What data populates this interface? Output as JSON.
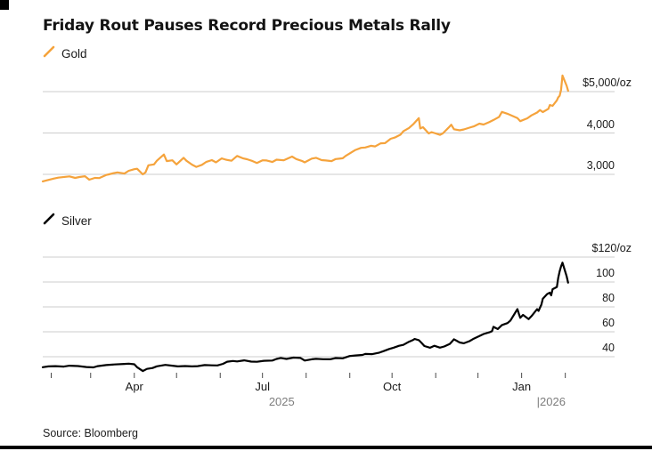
{
  "header": {
    "title": "Friday Rout Pauses Record Precious Metals Rally"
  },
  "source": "Source: Bloomberg",
  "colors": {
    "gold_line": "#F5A33C",
    "silver_line": "#000000",
    "grid": "#CDCDCD",
    "tick": "#4a4a4a",
    "year_text": "#7d7d7d",
    "title_text": "#131313"
  },
  "chart_data": [
    {
      "type": "line",
      "legend": "Gold",
      "color": "#F5A33C",
      "ylabel_unit": "$/oz",
      "ylim": [
        2750,
        5500
      ],
      "y_ticks": [
        {
          "value": 5000,
          "label": "$5,000/oz"
        },
        {
          "value": 4000,
          "label": "4,000"
        },
        {
          "value": 3000,
          "label": "3,000"
        }
      ],
      "series": [
        [
          "2025-01-26",
          2830
        ],
        [
          "2025-01-29",
          2855
        ],
        [
          "2025-02-03",
          2900
        ],
        [
          "2025-02-06",
          2920
        ],
        [
          "2025-02-11",
          2940
        ],
        [
          "2025-02-14",
          2950
        ],
        [
          "2025-02-18",
          2915
        ],
        [
          "2025-02-21",
          2935
        ],
        [
          "2025-02-25",
          2955
        ],
        [
          "2025-02-28",
          2870
        ],
        [
          "2025-03-04",
          2915
        ],
        [
          "2025-03-07",
          2910
        ],
        [
          "2025-03-12",
          2985
        ],
        [
          "2025-03-14",
          3000
        ],
        [
          "2025-03-18",
          3035
        ],
        [
          "2025-03-20",
          3048
        ],
        [
          "2025-03-25",
          3020
        ],
        [
          "2025-03-28",
          3085
        ],
        [
          "2025-04-01",
          3125
        ],
        [
          "2025-04-03",
          3135
        ],
        [
          "2025-04-07",
          3000
        ],
        [
          "2025-04-09",
          3050
        ],
        [
          "2025-04-11",
          3220
        ],
        [
          "2025-04-15",
          3240
        ],
        [
          "2025-04-17",
          3330
        ],
        [
          "2025-04-22",
          3480
        ],
        [
          "2025-04-24",
          3320
        ],
        [
          "2025-04-28",
          3340
        ],
        [
          "2025-05-01",
          3240
        ],
        [
          "2025-05-06",
          3400
        ],
        [
          "2025-05-08",
          3330
        ],
        [
          "2025-05-12",
          3235
        ],
        [
          "2025-05-15",
          3180
        ],
        [
          "2025-05-19",
          3230
        ],
        [
          "2025-05-22",
          3300
        ],
        [
          "2025-05-26",
          3345
        ],
        [
          "2025-05-29",
          3290
        ],
        [
          "2025-06-02",
          3385
        ],
        [
          "2025-06-05",
          3355
        ],
        [
          "2025-06-09",
          3330
        ],
        [
          "2025-06-13",
          3445
        ],
        [
          "2025-06-17",
          3390
        ],
        [
          "2025-06-20",
          3365
        ],
        [
          "2025-06-24",
          3320
        ],
        [
          "2025-06-27",
          3275
        ],
        [
          "2025-07-01",
          3340
        ],
        [
          "2025-07-04",
          3335
        ],
        [
          "2025-07-08",
          3300
        ],
        [
          "2025-07-11",
          3355
        ],
        [
          "2025-07-16",
          3340
        ],
        [
          "2025-07-22",
          3430
        ],
        [
          "2025-07-25",
          3370
        ],
        [
          "2025-07-29",
          3325
        ],
        [
          "2025-07-31",
          3290
        ],
        [
          "2025-08-05",
          3380
        ],
        [
          "2025-08-08",
          3400
        ],
        [
          "2025-08-12",
          3345
        ],
        [
          "2025-08-15",
          3335
        ],
        [
          "2025-08-19",
          3320
        ],
        [
          "2025-08-22",
          3370
        ],
        [
          "2025-08-27",
          3390
        ],
        [
          "2025-08-29",
          3445
        ],
        [
          "2025-09-02",
          3530
        ],
        [
          "2025-09-05",
          3590
        ],
        [
          "2025-09-09",
          3640
        ],
        [
          "2025-09-12",
          3650
        ],
        [
          "2025-09-16",
          3690
        ],
        [
          "2025-09-19",
          3675
        ],
        [
          "2025-09-23",
          3750
        ],
        [
          "2025-09-26",
          3755
        ],
        [
          "2025-09-30",
          3860
        ],
        [
          "2025-10-03",
          3890
        ],
        [
          "2025-10-07",
          3960
        ],
        [
          "2025-10-09",
          4040
        ],
        [
          "2025-10-13",
          4120
        ],
        [
          "2025-10-16",
          4210
        ],
        [
          "2025-10-20",
          4360
        ],
        [
          "2025-10-21",
          4110
        ],
        [
          "2025-10-23",
          4140
        ],
        [
          "2025-10-27",
          3990
        ],
        [
          "2025-10-29",
          4020
        ],
        [
          "2025-10-31",
          4000
        ],
        [
          "2025-11-04",
          3955
        ],
        [
          "2025-11-06",
          3990
        ],
        [
          "2025-11-10",
          4125
        ],
        [
          "2025-11-12",
          4200
        ],
        [
          "2025-11-14",
          4090
        ],
        [
          "2025-11-18",
          4065
        ],
        [
          "2025-11-21",
          4085
        ],
        [
          "2025-11-25",
          4130
        ],
        [
          "2025-11-28",
          4160
        ],
        [
          "2025-12-02",
          4225
        ],
        [
          "2025-12-05",
          4205
        ],
        [
          "2025-12-09",
          4265
        ],
        [
          "2025-12-12",
          4315
        ],
        [
          "2025-12-16",
          4390
        ],
        [
          "2025-12-18",
          4510
        ],
        [
          "2025-12-22",
          4465
        ],
        [
          "2025-12-29",
          4360
        ],
        [
          "2025-12-31",
          4285
        ],
        [
          "2026-01-05",
          4355
        ],
        [
          "2026-01-08",
          4425
        ],
        [
          "2026-01-12",
          4495
        ],
        [
          "2026-01-14",
          4555
        ],
        [
          "2026-01-16",
          4505
        ],
        [
          "2026-01-20",
          4585
        ],
        [
          "2026-01-21",
          4675
        ],
        [
          "2026-01-23",
          4655
        ],
        [
          "2026-01-26",
          4790
        ],
        [
          "2026-01-27",
          4860
        ],
        [
          "2026-01-28",
          4900
        ],
        [
          "2026-01-29",
          5040
        ],
        [
          "2026-01-30",
          5390
        ],
        [
          "2026-02-02",
          5140
        ],
        [
          "2026-02-03",
          5020
        ]
      ]
    },
    {
      "type": "line",
      "legend": "Silver",
      "color": "#000000",
      "ylabel_unit": "$/oz",
      "ylim": [
        25,
        125
      ],
      "y_ticks": [
        {
          "value": 120,
          "label": "$120/oz"
        },
        {
          "value": 100,
          "label": "100"
        },
        {
          "value": 80,
          "label": "80"
        },
        {
          "value": 60,
          "label": "60"
        },
        {
          "value": 40,
          "label": "40"
        }
      ],
      "series": [
        [
          "2025-01-26",
          31.6
        ],
        [
          "2025-01-30",
          32.2
        ],
        [
          "2025-02-04",
          32.4
        ],
        [
          "2025-02-10",
          32.1
        ],
        [
          "2025-02-14",
          32.8
        ],
        [
          "2025-02-20",
          32.5
        ],
        [
          "2025-02-26",
          31.7
        ],
        [
          "2025-03-03",
          31.4
        ],
        [
          "2025-03-06",
          32.4
        ],
        [
          "2025-03-12",
          33.3
        ],
        [
          "2025-03-18",
          33.8
        ],
        [
          "2025-03-25",
          34.2
        ],
        [
          "2025-03-28",
          34.4
        ],
        [
          "2025-04-01",
          33.9
        ],
        [
          "2025-04-03",
          31.6
        ],
        [
          "2025-04-07",
          28.5
        ],
        [
          "2025-04-10",
          30.2
        ],
        [
          "2025-04-14",
          30.9
        ],
        [
          "2025-04-17",
          32.3
        ],
        [
          "2025-04-23",
          33.4
        ],
        [
          "2025-04-28",
          32.8
        ],
        [
          "2025-05-02",
          32.2
        ],
        [
          "2025-05-07",
          32.5
        ],
        [
          "2025-05-12",
          32.2
        ],
        [
          "2025-05-16",
          32.4
        ],
        [
          "2025-05-21",
          33.3
        ],
        [
          "2025-05-26",
          33.1
        ],
        [
          "2025-05-30",
          33.0
        ],
        [
          "2025-06-03",
          34.3
        ],
        [
          "2025-06-06",
          36.0
        ],
        [
          "2025-06-10",
          36.6
        ],
        [
          "2025-06-13",
          36.2
        ],
        [
          "2025-06-18",
          37.1
        ],
        [
          "2025-06-23",
          36.1
        ],
        [
          "2025-06-27",
          35.9
        ],
        [
          "2025-07-02",
          36.7
        ],
        [
          "2025-07-08",
          36.9
        ],
        [
          "2025-07-11",
          38.2
        ],
        [
          "2025-07-14",
          39.0
        ],
        [
          "2025-07-18",
          38.2
        ],
        [
          "2025-07-23",
          39.3
        ],
        [
          "2025-07-28",
          39.0
        ],
        [
          "2025-07-31",
          36.9
        ],
        [
          "2025-08-05",
          37.9
        ],
        [
          "2025-08-08",
          38.3
        ],
        [
          "2025-08-13",
          38.0
        ],
        [
          "2025-08-18",
          37.9
        ],
        [
          "2025-08-22",
          38.9
        ],
        [
          "2025-08-27",
          38.7
        ],
        [
          "2025-09-01",
          40.6
        ],
        [
          "2025-09-05",
          41.0
        ],
        [
          "2025-09-10",
          41.4
        ],
        [
          "2025-09-12",
          42.2
        ],
        [
          "2025-09-17",
          42.1
        ],
        [
          "2025-09-22",
          43.3
        ],
        [
          "2025-09-25",
          44.5
        ],
        [
          "2025-09-29",
          46.2
        ],
        [
          "2025-10-02",
          47.2
        ],
        [
          "2025-10-06",
          48.8
        ],
        [
          "2025-10-09",
          49.5
        ],
        [
          "2025-10-13",
          52.0
        ],
        [
          "2025-10-16",
          53.5
        ],
        [
          "2025-10-17",
          54.3
        ],
        [
          "2025-10-20",
          53.3
        ],
        [
          "2025-10-22",
          51.0
        ],
        [
          "2025-10-24",
          48.6
        ],
        [
          "2025-10-28",
          47.2
        ],
        [
          "2025-10-31",
          48.8
        ],
        [
          "2025-11-04",
          47.3
        ],
        [
          "2025-11-07",
          48.2
        ],
        [
          "2025-11-11",
          50.3
        ],
        [
          "2025-11-13",
          52.8
        ],
        [
          "2025-11-14",
          54.0
        ],
        [
          "2025-11-18",
          51.4
        ],
        [
          "2025-11-21",
          50.8
        ],
        [
          "2025-11-25",
          52.5
        ],
        [
          "2025-11-28",
          54.5
        ],
        [
          "2025-12-02",
          56.6
        ],
        [
          "2025-12-05",
          58.2
        ],
        [
          "2025-12-09",
          59.6
        ],
        [
          "2025-12-11",
          60.5
        ],
        [
          "2025-12-12",
          64.0
        ],
        [
          "2025-12-15",
          62.2
        ],
        [
          "2025-12-18",
          65.4
        ],
        [
          "2025-12-22",
          67.0
        ],
        [
          "2025-12-24",
          69.0
        ],
        [
          "2025-12-29",
          78.2
        ],
        [
          "2025-12-30",
          74.6
        ],
        [
          "2025-12-31",
          71.2
        ],
        [
          "2026-01-02",
          73.6
        ],
        [
          "2026-01-06",
          70.2
        ],
        [
          "2026-01-08",
          72.6
        ],
        [
          "2026-01-12",
          78.2
        ],
        [
          "2026-01-13",
          76.8
        ],
        [
          "2026-01-15",
          81.8
        ],
        [
          "2026-01-16",
          86.5
        ],
        [
          "2026-01-19",
          90.2
        ],
        [
          "2026-01-21",
          91.4
        ],
        [
          "2026-01-22",
          89.3
        ],
        [
          "2026-01-23",
          94.2
        ],
        [
          "2026-01-26",
          96.0
        ],
        [
          "2026-01-27",
          103.2
        ],
        [
          "2026-01-28",
          108.5
        ],
        [
          "2026-01-29",
          112.5
        ],
        [
          "2026-01-30",
          115.5
        ],
        [
          "2026-02-02",
          104.5
        ],
        [
          "2026-02-03",
          99.5
        ]
      ],
      "x_axis": {
        "tick_dates": [
          "2025-02-01",
          "2025-03-01",
          "2025-04-01",
          "2025-05-01",
          "2025-06-01",
          "2025-07-01",
          "2025-08-01",
          "2025-09-01",
          "2025-10-01",
          "2025-11-01",
          "2025-12-01",
          "2026-01-01",
          "2026-02-01"
        ],
        "month_labels": [
          {
            "date": "2025-04-01",
            "label": "Apr"
          },
          {
            "date": "2025-07-01",
            "label": "Jul"
          },
          {
            "date": "2025-10-01",
            "label": "Oct"
          },
          {
            "date": "2026-01-01",
            "label": "Jan"
          }
        ],
        "year_labels": [
          {
            "label": "2025",
            "year_start": "2025-01-26"
          },
          {
            "label": "|2026",
            "year_start": "2026-01-01"
          }
        ]
      }
    }
  ]
}
